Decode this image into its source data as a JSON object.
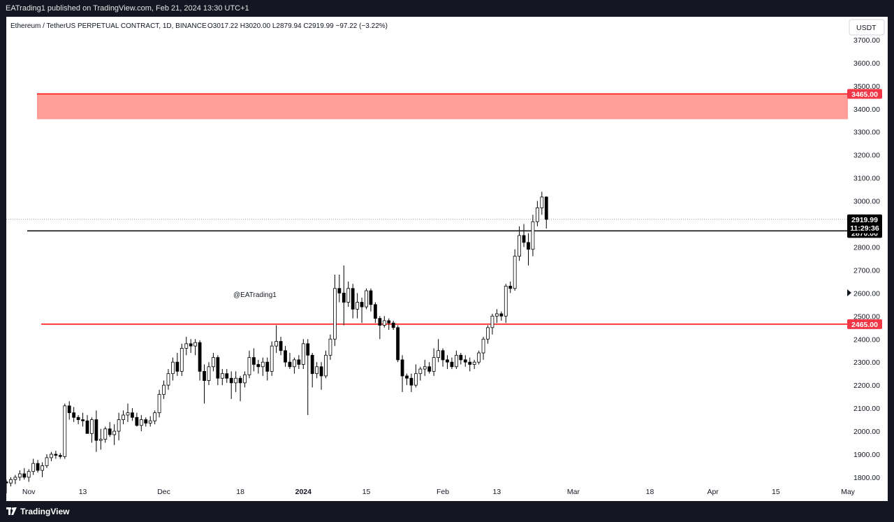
{
  "header": {
    "published_text": "EATrading1 published on TradingView.com, Feb 21, 2024 13:30 UTC+1"
  },
  "footer": {
    "brand": "TradingView",
    "logo_icon": "tradingview-logo-icon"
  },
  "chart_data": {
    "type": "candlestick",
    "symbol_info": "Ethereum / TetherUS PERPETUAL CONTRACT, 1D, BINANCE",
    "ohlc_text": "O3017.22  H3020.00  L2879.94  C2919.99  −97.22 (−3.22%)",
    "currency": "USDT",
    "watermark": "@EATrading1",
    "y_range": [
      1730,
      3800
    ],
    "y_ticks": [
      1800,
      1900,
      2000,
      2100,
      2200,
      2300,
      2400,
      2500,
      2600,
      2700,
      2800,
      2900,
      3000,
      3100,
      3200,
      3300,
      3400,
      3500,
      3600,
      3700
    ],
    "x_start": "2023-10-27",
    "x_end": "2024-05-01",
    "x_ticks": [
      {
        "date": "2023-11-01",
        "label": "Nov",
        "bold": false
      },
      {
        "date": "2023-11-13",
        "label": "13",
        "bold": false
      },
      {
        "date": "2023-12-01",
        "label": "Dec",
        "bold": false
      },
      {
        "date": "2023-12-18",
        "label": "18",
        "bold": false
      },
      {
        "date": "2024-01-01",
        "label": "2024",
        "bold": true
      },
      {
        "date": "2024-01-15",
        "label": "15",
        "bold": false
      },
      {
        "date": "2024-02-01",
        "label": "Feb",
        "bold": false
      },
      {
        "date": "2024-02-13",
        "label": "13",
        "bold": false
      },
      {
        "date": "2024-03-01",
        "label": "Mar",
        "bold": false
      },
      {
        "date": "2024-03-18",
        "label": "18",
        "bold": false
      },
      {
        "date": "2024-04-01",
        "label": "Apr",
        "bold": false
      },
      {
        "date": "2024-04-15",
        "label": "15",
        "bold": false
      },
      {
        "date": "2024-05-01",
        "label": "May",
        "bold": false
      }
    ],
    "candle_start_date": "2023-10-27",
    "candles": [
      [
        1780,
        1790,
        1730,
        1775
      ],
      [
        1775,
        1800,
        1760,
        1790
      ],
      [
        1790,
        1810,
        1770,
        1800
      ],
      [
        1800,
        1830,
        1785,
        1815
      ],
      [
        1815,
        1840,
        1790,
        1800
      ],
      [
        1800,
        1835,
        1780,
        1825
      ],
      [
        1825,
        1880,
        1810,
        1860
      ],
      [
        1860,
        1875,
        1820,
        1830
      ],
      [
        1830,
        1865,
        1800,
        1850
      ],
      [
        1850,
        1900,
        1840,
        1885
      ],
      [
        1885,
        1910,
        1870,
        1900
      ],
      [
        1900,
        1915,
        1880,
        1895
      ],
      [
        1895,
        1905,
        1880,
        1890
      ],
      [
        1890,
        2120,
        1880,
        2110
      ],
      [
        2110,
        2130,
        2050,
        2080
      ],
      [
        2080,
        2105,
        2040,
        2060
      ],
      [
        2060,
        2070,
        2030,
        2050
      ],
      [
        2050,
        2080,
        2020,
        2045
      ],
      [
        2045,
        2070,
        2000,
        1990
      ],
      [
        1990,
        2060,
        1950,
        2050
      ],
      [
        2050,
        2090,
        1910,
        1960
      ],
      [
        1960,
        2010,
        1920,
        1965
      ],
      [
        1965,
        2020,
        1950,
        2010
      ],
      [
        2010,
        2040,
        1975,
        1985
      ],
      [
        1985,
        2030,
        1940,
        2000
      ],
      [
        2000,
        2080,
        1960,
        2050
      ],
      [
        2050,
        2090,
        2030,
        2070
      ],
      [
        2070,
        2120,
        2040,
        2080
      ],
      [
        2080,
        2100,
        2045,
        2060
      ],
      [
        2060,
        2080,
        2020,
        2025
      ],
      [
        2025,
        2070,
        2000,
        2050
      ],
      [
        2050,
        2060,
        2020,
        2035
      ],
      [
        2035,
        2065,
        2020,
        2045
      ],
      [
        2045,
        2090,
        2030,
        2080
      ],
      [
        2080,
        2180,
        2060,
        2160
      ],
      [
        2160,
        2220,
        2140,
        2200
      ],
      [
        2200,
        2270,
        2180,
        2250
      ],
      [
        2250,
        2320,
        2220,
        2300
      ],
      [
        2300,
        2340,
        2240,
        2260
      ],
      [
        2260,
        2380,
        2240,
        2360
      ],
      [
        2360,
        2410,
        2330,
        2380
      ],
      [
        2380,
        2400,
        2340,
        2370
      ],
      [
        2370,
        2400,
        2330,
        2385
      ],
      [
        2385,
        2395,
        2220,
        2260
      ],
      [
        2260,
        2290,
        2120,
        2220
      ],
      [
        2220,
        2300,
        2200,
        2280
      ],
      [
        2280,
        2340,
        2260,
        2320
      ],
      [
        2320,
        2330,
        2200,
        2230
      ],
      [
        2230,
        2270,
        2200,
        2250
      ],
      [
        2250,
        2270,
        2210,
        2230
      ],
      [
        2230,
        2260,
        2140,
        2210
      ],
      [
        2210,
        2260,
        2170,
        2230
      ],
      [
        2230,
        2240,
        2130,
        2210
      ],
      [
        2210,
        2260,
        2190,
        2245
      ],
      [
        2245,
        2350,
        2230,
        2320
      ],
      [
        2320,
        2360,
        2260,
        2290
      ],
      [
        2290,
        2310,
        2250,
        2280
      ],
      [
        2280,
        2320,
        2240,
        2300
      ],
      [
        2300,
        2320,
        2220,
        2260
      ],
      [
        2260,
        2390,
        2240,
        2370
      ],
      [
        2370,
        2460,
        2340,
        2390
      ],
      [
        2390,
        2410,
        2330,
        2350
      ],
      [
        2350,
        2370,
        2280,
        2300
      ],
      [
        2300,
        2340,
        2270,
        2280
      ],
      [
        2280,
        2320,
        2250,
        2310
      ],
      [
        2310,
        2330,
        2270,
        2290
      ],
      [
        2290,
        2400,
        2270,
        2380
      ],
      [
        2380,
        2400,
        2070,
        2330
      ],
      [
        2330,
        2340,
        2190,
        2250
      ],
      [
        2250,
        2300,
        2230,
        2280
      ],
      [
        2280,
        2300,
        2180,
        2240
      ],
      [
        2240,
        2350,
        2230,
        2330
      ],
      [
        2330,
        2420,
        2310,
        2400
      ],
      [
        2400,
        2680,
        2370,
        2620
      ],
      [
        2620,
        2680,
        2560,
        2600
      ],
      [
        2600,
        2720,
        2460,
        2560
      ],
      [
        2560,
        2650,
        2540,
        2620
      ],
      [
        2620,
        2640,
        2490,
        2530
      ],
      [
        2530,
        2600,
        2490,
        2560
      ],
      [
        2560,
        2580,
        2470,
        2540
      ],
      [
        2540,
        2620,
        2530,
        2610
      ],
      [
        2610,
        2620,
        2520,
        2550
      ],
      [
        2550,
        2560,
        2470,
        2490
      ],
      [
        2490,
        2500,
        2400,
        2460
      ],
      [
        2460,
        2500,
        2450,
        2480
      ],
      [
        2480,
        2490,
        2440,
        2470
      ],
      [
        2470,
        2480,
        2440,
        2450
      ],
      [
        2450,
        2460,
        2300,
        2310
      ],
      [
        2310,
        2330,
        2170,
        2240
      ],
      [
        2240,
        2250,
        2200,
        2230
      ],
      [
        2230,
        2250,
        2170,
        2200
      ],
      [
        2200,
        2290,
        2190,
        2250
      ],
      [
        2250,
        2280,
        2220,
        2270
      ],
      [
        2270,
        2310,
        2240,
        2280
      ],
      [
        2280,
        2300,
        2250,
        2260
      ],
      [
        2260,
        2360,
        2240,
        2320
      ],
      [
        2320,
        2400,
        2300,
        2350
      ],
      [
        2350,
        2360,
        2280,
        2310
      ],
      [
        2310,
        2330,
        2270,
        2300
      ],
      [
        2300,
        2320,
        2270,
        2280
      ],
      [
        2280,
        2350,
        2270,
        2330
      ],
      [
        2330,
        2340,
        2290,
        2310
      ],
      [
        2310,
        2330,
        2280,
        2300
      ],
      [
        2300,
        2320,
        2260,
        2290
      ],
      [
        2290,
        2310,
        2270,
        2300
      ],
      [
        2300,
        2350,
        2290,
        2340
      ],
      [
        2340,
        2410,
        2310,
        2400
      ],
      [
        2400,
        2460,
        2380,
        2450
      ],
      [
        2450,
        2510,
        2420,
        2500
      ],
      [
        2500,
        2530,
        2470,
        2510
      ],
      [
        2510,
        2520,
        2480,
        2500
      ],
      [
        2500,
        2640,
        2470,
        2630
      ],
      [
        2630,
        2650,
        2600,
        2620
      ],
      [
        2620,
        2790,
        2610,
        2760
      ],
      [
        2760,
        2890,
        2740,
        2850
      ],
      [
        2850,
        2900,
        2800,
        2820
      ],
      [
        2820,
        2860,
        2720,
        2790
      ],
      [
        2790,
        2940,
        2760,
        2910
      ],
      [
        2910,
        3000,
        2890,
        2970
      ],
      [
        2970,
        3040,
        2940,
        3017.22
      ],
      [
        3017.22,
        3020,
        2879.94,
        2919.99
      ]
    ],
    "levels": [
      {
        "value": 2870,
        "label": "2870.00",
        "color": "#000000",
        "width": 1.5,
        "tag_bg": "#000000"
      },
      {
        "value": 2465,
        "label": "2465.00",
        "color": "#ff0000",
        "width": 1.5,
        "tag_bg": "#f23645"
      }
    ],
    "zones": [
      {
        "from": 3355,
        "to": 3465,
        "color": "#ff9e99",
        "edge": "#ff0000",
        "label": "3465.00",
        "tag_bg": "#f23645"
      }
    ],
    "last_price": {
      "value": 2919.99,
      "label": "2919.99",
      "countdown": "11:29:36"
    },
    "colors": {
      "up": "#ffffff",
      "down": "#000000",
      "wick": "#000000"
    }
  }
}
